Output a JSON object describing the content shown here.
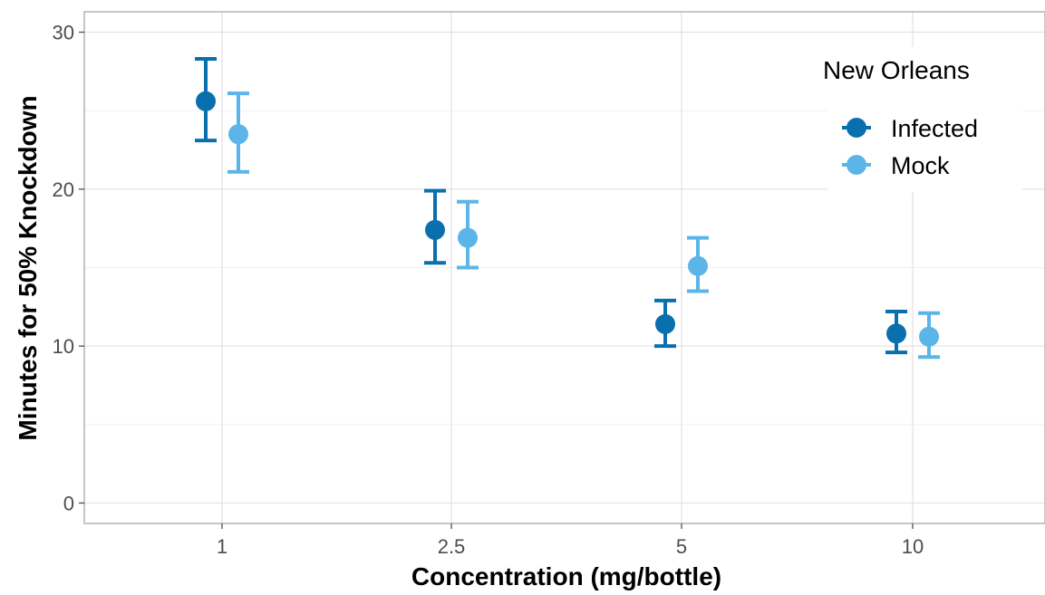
{
  "chart_data": {
    "type": "scatter",
    "xlabel": "Concentration (mg/bottle)",
    "ylabel": "Minutes for 50% Knockdown",
    "categories": [
      "1",
      "2.5",
      "5",
      "10"
    ],
    "ylim": [
      -1.3,
      31.3
    ],
    "yticks": [
      "0",
      "10",
      "20",
      "30"
    ],
    "grid": true,
    "legend": {
      "title": "New Orleans",
      "position": "top-right"
    },
    "series": [
      {
        "name": "Infected",
        "color": "#0a6fad",
        "values": [
          25.6,
          17.4,
          11.4,
          10.8
        ],
        "error_low": [
          23.1,
          15.3,
          10.0,
          9.6
        ],
        "error_high": [
          28.3,
          19.9,
          12.9,
          12.2
        ]
      },
      {
        "name": "Mock",
        "color": "#5bb5e8",
        "values": [
          23.5,
          16.9,
          15.1,
          10.6
        ],
        "error_low": [
          21.1,
          15.0,
          13.5,
          9.3
        ],
        "error_high": [
          26.1,
          19.2,
          16.9,
          12.1
        ]
      }
    ]
  }
}
